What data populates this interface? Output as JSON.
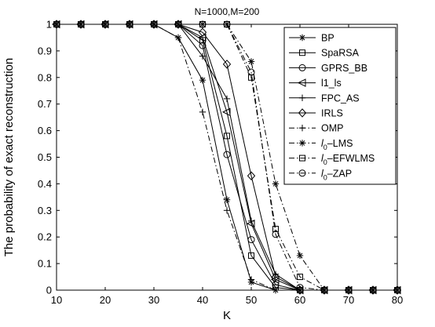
{
  "chart_data": {
    "type": "line",
    "title": "N=1000,M=200",
    "xlabel": "K",
    "ylabel": "The probability of exact reconstruction",
    "xlim": [
      10,
      80
    ],
    "ylim": [
      0,
      1
    ],
    "xticks": [
      10,
      20,
      30,
      40,
      50,
      60,
      70,
      80
    ],
    "xtick_labels": [
      "10",
      "20",
      "30",
      "40",
      "50",
      "60",
      "70",
      "80"
    ],
    "yticks": [
      0,
      0.1,
      0.2,
      0.3,
      0.4,
      0.5,
      0.6,
      0.7,
      0.8,
      0.9,
      1
    ],
    "ytick_labels": [
      "0",
      "0.1",
      "0.2",
      "0.3",
      "0.4",
      "0.5",
      "0.6",
      "0.7",
      "0.8",
      "0.9",
      "1"
    ],
    "grid": false,
    "legend_position": "top-right",
    "x": [
      10,
      15,
      20,
      25,
      30,
      35,
      40,
      45,
      50,
      55,
      60,
      65,
      70,
      75,
      80
    ],
    "series": [
      {
        "name": "BP",
        "marker": "star",
        "dash": "solid",
        "values": [
          1,
          1,
          1,
          1,
          1,
          0.95,
          0.79,
          0.34,
          0.03,
          0,
          0,
          0,
          0,
          0,
          0
        ]
      },
      {
        "name": "SpaRSA",
        "marker": "square",
        "dash": "solid",
        "values": [
          1,
          1,
          1,
          1,
          1,
          1,
          0.94,
          0.58,
          0.13,
          0.01,
          0,
          0,
          0,
          0,
          0
        ]
      },
      {
        "name": "GPRS_BB",
        "marker": "circle",
        "dash": "solid",
        "values": [
          1,
          1,
          1,
          1,
          1,
          1,
          0.92,
          0.51,
          0.19,
          0.02,
          0,
          0,
          0,
          0,
          0
        ]
      },
      {
        "name": "l1_ls",
        "marker": "triangle-left",
        "dash": "solid",
        "values": [
          1,
          1,
          1,
          1,
          1,
          1,
          0.95,
          0.67,
          0.25,
          0.04,
          0,
          0,
          0,
          0,
          0
        ]
      },
      {
        "name": "FPC_AS",
        "marker": "plus",
        "dash": "solid",
        "values": [
          1,
          1,
          1,
          1,
          1,
          1,
          0.88,
          0.72,
          0.26,
          0.06,
          0,
          0,
          0,
          0,
          0
        ]
      },
      {
        "name": "IRLS",
        "marker": "diamond",
        "dash": "solid",
        "values": [
          1,
          1,
          1,
          1,
          1,
          1,
          0.97,
          0.85,
          0.43,
          0.05,
          0,
          0,
          0,
          0,
          0
        ]
      },
      {
        "name": "OMP",
        "marker": "plus",
        "dash": "dashdot",
        "values": [
          1,
          1,
          1,
          1,
          1,
          0.95,
          0.67,
          0.3,
          0.04,
          0,
          0,
          0,
          0,
          0,
          0
        ]
      },
      {
        "name": "l0-LMS",
        "marker": "star",
        "dash": "dashdot",
        "values": [
          1,
          1,
          1,
          1,
          1,
          1,
          1,
          1,
          0.86,
          0.4,
          0.13,
          0,
          0,
          0,
          0
        ]
      },
      {
        "name": "l0-EFWLMS",
        "marker": "square",
        "dash": "dashdot",
        "values": [
          1,
          1,
          1,
          1,
          1,
          1,
          1,
          1,
          0.8,
          0.23,
          0.05,
          0,
          0,
          0,
          0
        ]
      },
      {
        "name": "l0-ZAP",
        "marker": "circle",
        "dash": "dashdot",
        "values": [
          1,
          1,
          1,
          1,
          1,
          1,
          1,
          1,
          0.82,
          0.21,
          0.01,
          0,
          0,
          0,
          0
        ]
      }
    ],
    "legend": [
      {
        "sub": "",
        "text": "BP"
      },
      {
        "sub": "",
        "text": "SpaRSA"
      },
      {
        "sub": "",
        "text": "GPRS_BB"
      },
      {
        "sub": "",
        "text": "l1_ls"
      },
      {
        "sub": "",
        "text": "FPC_AS"
      },
      {
        "sub": "",
        "text": "IRLS"
      },
      {
        "sub": "",
        "text": "OMP"
      },
      {
        "sub": "0",
        "text": "–LMS"
      },
      {
        "sub": "0",
        "text": "–EFWLMS"
      },
      {
        "sub": "0",
        "text": "–ZAP"
      }
    ]
  }
}
